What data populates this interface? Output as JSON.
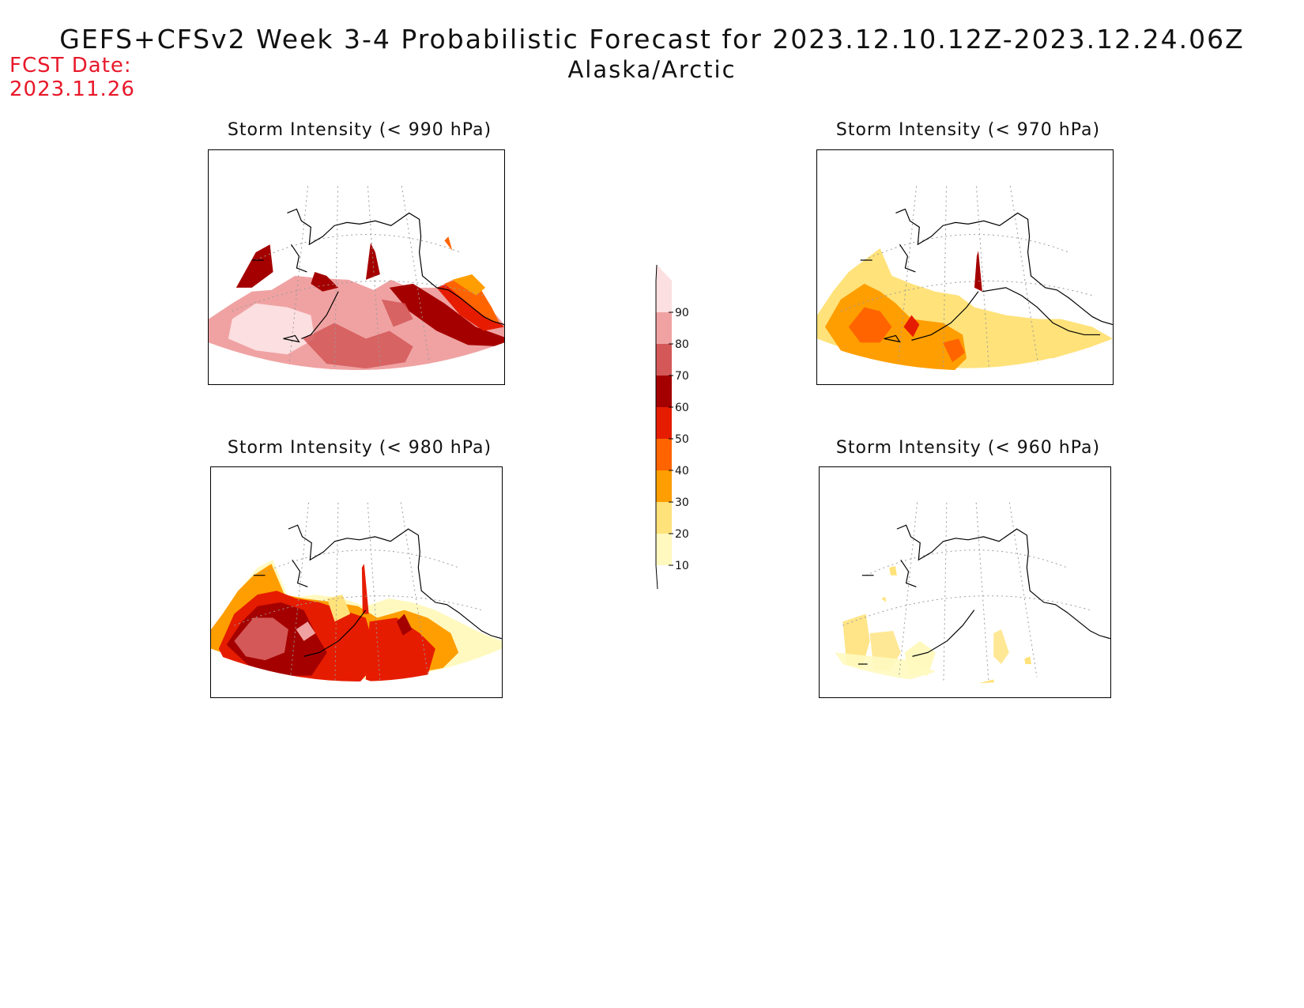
{
  "header": {
    "title": "GEFS+CFSv2 Week 3-4 Probabilistic Forecast for 2023.12.10.12Z-2023.12.24.06Z",
    "region": "Alaska/Arctic"
  },
  "fcst": {
    "label": "FCST Date:",
    "date": "2023.11.26"
  },
  "panels": [
    {
      "id": "p990",
      "title": "Storm Intensity (< 990 hPa)"
    },
    {
      "id": "p970",
      "title": "Storm Intensity (< 970 hPa)"
    },
    {
      "id": "p980",
      "title": "Storm Intensity (< 980 hPa)"
    },
    {
      "id": "p960",
      "title": "Storm Intensity (< 960 hPa)"
    }
  ],
  "colorbar": {
    "levels": [
      "10",
      "20",
      "30",
      "40",
      "50",
      "60",
      "70",
      "80",
      "90"
    ],
    "colors": [
      "#fff9c0",
      "#ffe27a",
      "#ff9e00",
      "#ff6400",
      "#e61c00",
      "#a50000",
      "#d45858",
      "#f0a2a2",
      "#fcdfe0"
    ]
  }
}
